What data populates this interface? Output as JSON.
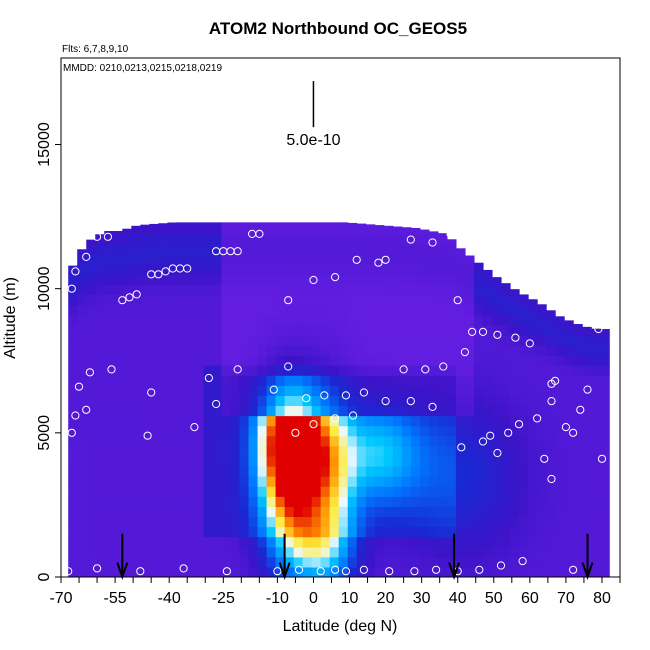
{
  "chart_data": {
    "type": "heatmap",
    "title": "ATOM2 Northbound OC_GEOS5",
    "subtitle_flights": "Flts: 6,7,8,9,10",
    "subtitle_dates": "MMDD: 0210,0213,0215,0218,0219",
    "xlabel": "Latitude (deg N)",
    "ylabel": "Altitude (m)",
    "xlim": [
      -70,
      85
    ],
    "ylim": [
      0,
      18000
    ],
    "x_ticks": [
      -70,
      -55,
      -40,
      -25,
      -10,
      0,
      10,
      20,
      30,
      40,
      50,
      60,
      70,
      80
    ],
    "x_tick_labels": [
      "-70",
      "-55",
      "-40",
      "-25",
      "-10",
      "0",
      "10",
      "20",
      "30",
      "40",
      "50",
      "60",
      "70",
      "80"
    ],
    "x_ticks_intermediate": [
      -65,
      -60,
      -50,
      -45,
      -35,
      -30,
      -20,
      -15,
      -5,
      5,
      15,
      25,
      35,
      45,
      55,
      65,
      75,
      85
    ],
    "y_ticks": [
      0,
      5000,
      10000,
      15000
    ],
    "y_tick_labels": [
      "0",
      "5000",
      "10000",
      "15000"
    ],
    "scale_bar": {
      "label": "5.0e-10",
      "x": 0,
      "y_top": 17200,
      "y_bottom": 15600
    },
    "column_top_altitudes": [
      [
        -68,
        10800
      ],
      [
        -66,
        11300
      ],
      [
        -63,
        11700
      ],
      [
        -59,
        12000
      ],
      [
        -55,
        12000
      ],
      [
        -50,
        12200
      ],
      [
        -40,
        12300
      ],
      [
        -30,
        12300
      ],
      [
        -20,
        12300
      ],
      [
        -10,
        12300
      ],
      [
        0,
        12300
      ],
      [
        10,
        12300
      ],
      [
        20,
        12200
      ],
      [
        30,
        12100
      ],
      [
        38,
        11900
      ],
      [
        42,
        11400
      ],
      [
        47,
        10900
      ],
      [
        52,
        10400
      ],
      [
        58,
        9900
      ],
      [
        64,
        9500
      ],
      [
        70,
        9000
      ],
      [
        76,
        8700
      ],
      [
        80,
        8600
      ]
    ],
    "plume_hotspots": [
      {
        "lat": -6,
        "alt": 5000,
        "intensity": 1.0,
        "sigma_lat": 6,
        "sigma_alt": 1500
      },
      {
        "lat": -6,
        "alt": 3000,
        "intensity": 0.6,
        "sigma_lat": 6,
        "sigma_alt": 1600
      },
      {
        "lat": 5,
        "alt": 3500,
        "intensity": 0.45,
        "sigma_lat": 5,
        "sigma_alt": 2200
      },
      {
        "lat": 18,
        "alt": 4300,
        "intensity": 0.35,
        "sigma_lat": 8,
        "sigma_alt": 1200
      },
      {
        "lat": 0,
        "alt": 1000,
        "intensity": 0.35,
        "sigma_lat": 7,
        "sigma_alt": 900
      },
      {
        "lat": 40,
        "alt": 3500,
        "intensity": 0.15,
        "sigma_lat": 12,
        "sigma_alt": 1800
      }
    ],
    "flight_points": [
      [
        -68,
        200
      ],
      [
        -60,
        300
      ],
      [
        -48,
        200
      ],
      [
        -36,
        300
      ],
      [
        -24,
        200
      ],
      [
        -10,
        200
      ],
      [
        -4,
        250
      ],
      [
        2,
        200
      ],
      [
        6,
        250
      ],
      [
        9,
        200
      ],
      [
        14,
        250
      ],
      [
        21,
        200
      ],
      [
        28,
        200
      ],
      [
        34,
        250
      ],
      [
        40,
        200
      ],
      [
        46,
        250
      ],
      [
        52,
        400
      ],
      [
        58,
        550
      ],
      [
        72,
        250
      ],
      [
        -67,
        5000
      ],
      [
        -66,
        5600
      ],
      [
        -63,
        5800
      ],
      [
        -65,
        6600
      ],
      [
        -62,
        7100
      ],
      [
        -56,
        7200
      ],
      [
        -46,
        4900
      ],
      [
        -45,
        6400
      ],
      [
        -33,
        5200
      ],
      [
        -29,
        6900
      ],
      [
        -27,
        6000
      ],
      [
        -21,
        7200
      ],
      [
        -11,
        6500
      ],
      [
        -7,
        7300
      ],
      [
        -5,
        5000
      ],
      [
        -2,
        6200
      ],
      [
        0,
        5300
      ],
      [
        3,
        6300
      ],
      [
        6,
        5500
      ],
      [
        9,
        6300
      ],
      [
        11,
        5600
      ],
      [
        14,
        6400
      ],
      [
        20,
        6100
      ],
      [
        25,
        7200
      ],
      [
        27,
        6100
      ],
      [
        31,
        7200
      ],
      [
        33,
        5900
      ],
      [
        36,
        7300
      ],
      [
        41,
        4500
      ],
      [
        47,
        4700
      ],
      [
        49,
        4900
      ],
      [
        51,
        4300
      ],
      [
        54,
        5000
      ],
      [
        57,
        5300
      ],
      [
        62,
        5500
      ],
      [
        64,
        4100
      ],
      [
        66,
        3400
      ],
      [
        66,
        6100
      ],
      [
        66,
        6700
      ],
      [
        67,
        6800
      ],
      [
        70,
        5200
      ],
      [
        72,
        5000
      ],
      [
        74,
        5800
      ],
      [
        76,
        6500
      ],
      [
        80,
        4100
      ],
      [
        -67,
        10000
      ],
      [
        -66,
        10600
      ],
      [
        -63,
        11100
      ],
      [
        -60,
        11800
      ],
      [
        -57,
        11800
      ],
      [
        -53,
        9600
      ],
      [
        -51,
        9700
      ],
      [
        -49,
        9800
      ],
      [
        -45,
        10500
      ],
      [
        -43,
        10500
      ],
      [
        -41,
        10600
      ],
      [
        -39,
        10700
      ],
      [
        -37,
        10700
      ],
      [
        -35,
        10700
      ],
      [
        -27,
        11300
      ],
      [
        -25,
        11300
      ],
      [
        -23,
        11300
      ],
      [
        -21,
        11300
      ],
      [
        -17,
        11900
      ],
      [
        -15,
        11900
      ],
      [
        -7,
        9600
      ],
      [
        0,
        10300
      ],
      [
        6,
        10400
      ],
      [
        12,
        11000
      ],
      [
        18,
        10900
      ],
      [
        20,
        11000
      ],
      [
        27,
        11700
      ],
      [
        33,
        11600
      ],
      [
        38,
        11900
      ],
      [
        40,
        9600
      ],
      [
        42,
        7800
      ],
      [
        44,
        8500
      ],
      [
        47,
        8500
      ],
      [
        51,
        8400
      ],
      [
        56,
        8300
      ],
      [
        60,
        8100
      ],
      [
        69,
        9300
      ],
      [
        75,
        9400
      ],
      [
        79,
        8600
      ]
    ],
    "arrows": [
      {
        "lat": -53,
        "label": "down-arrow"
      },
      {
        "lat": -8,
        "label": "down-arrow"
      },
      {
        "lat": 39,
        "label": "down-arrow"
      },
      {
        "lat": 76,
        "label": "down-arrow"
      }
    ],
    "colors": {
      "background_low": "#6a1fe6",
      "mid_blue": "#1a3bd9",
      "cyan": "#00c8ff",
      "white": "#f0f8ff",
      "yellow": "#ffe633",
      "orange": "#ff8c00",
      "red": "#e00000",
      "point_stroke": "#ffffff"
    },
    "grid": false,
    "legend": "none"
  }
}
